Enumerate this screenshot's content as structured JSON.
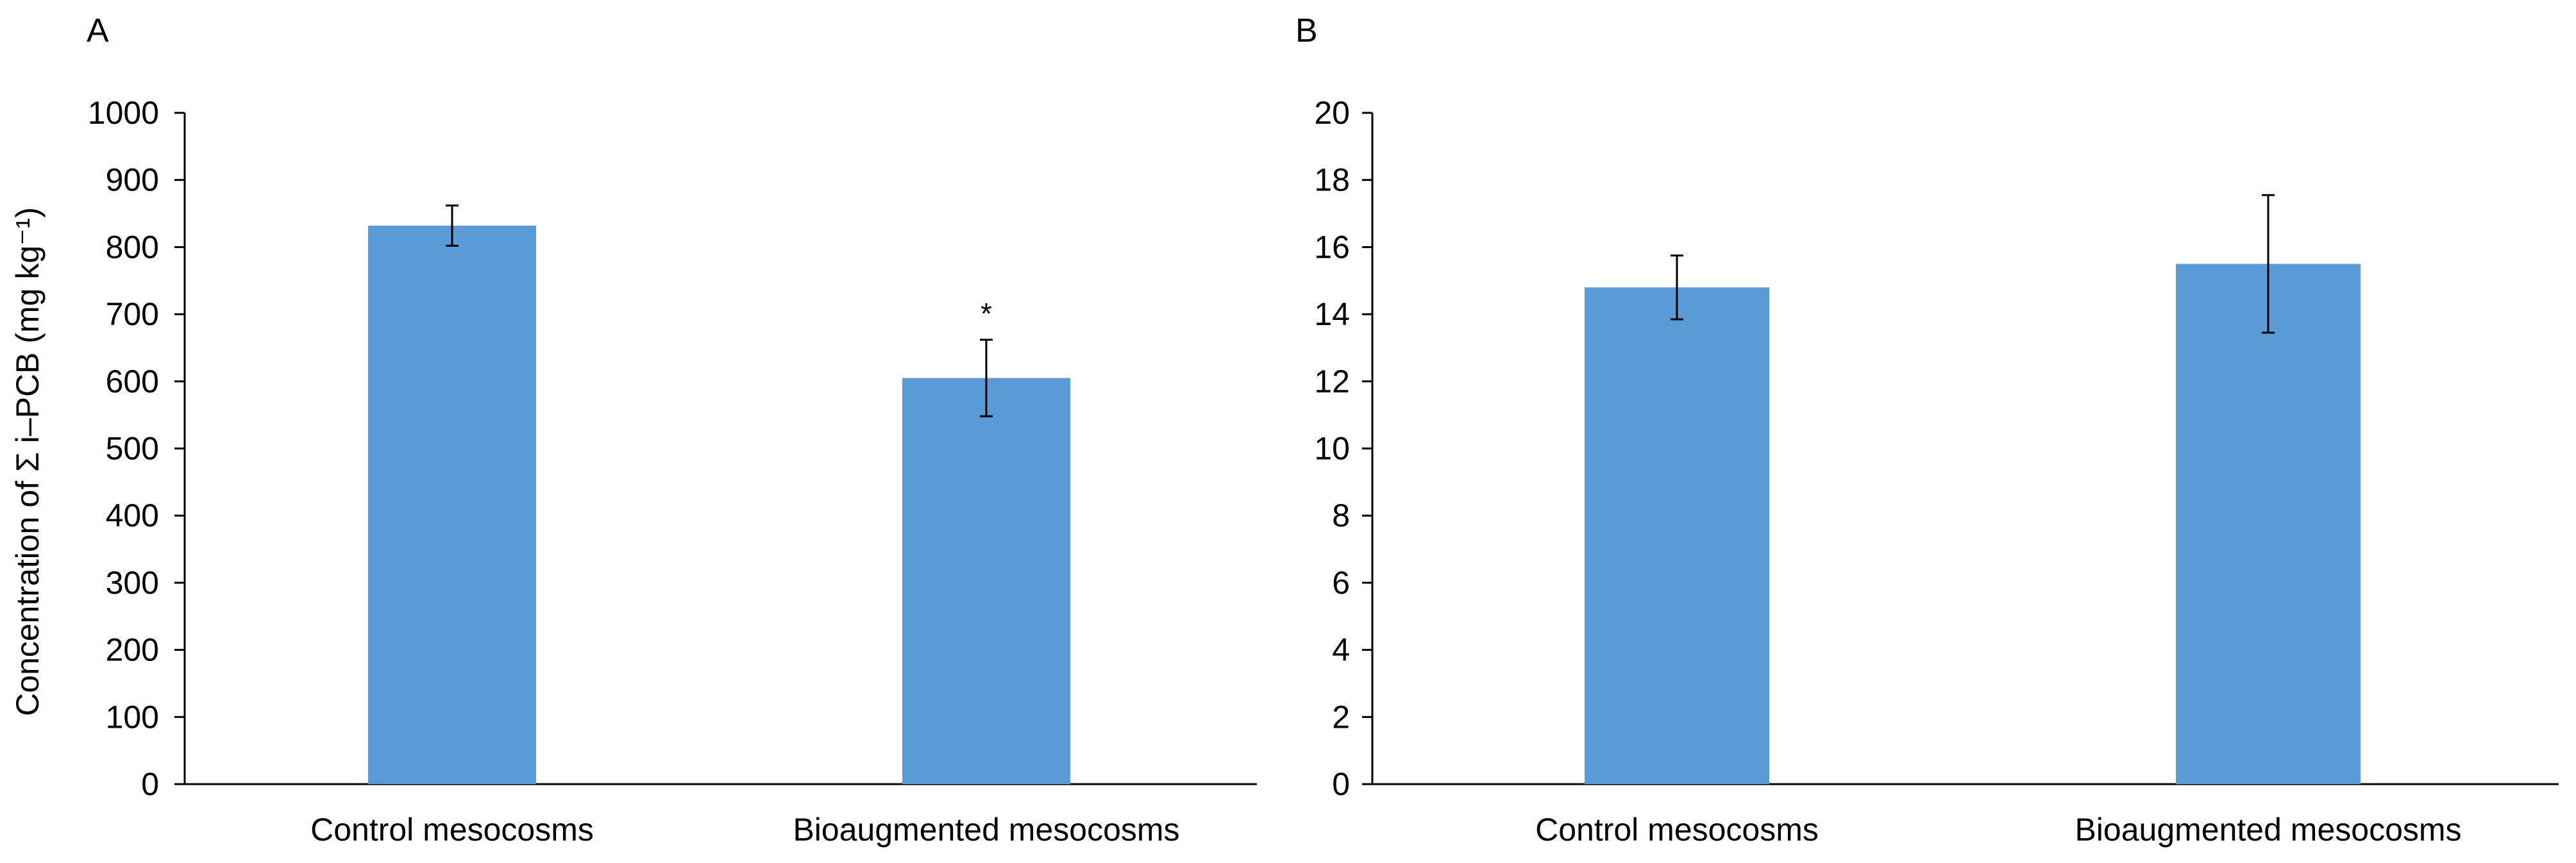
{
  "figure": {
    "bar_color": "#5b9bd5",
    "axis_color": "#000000"
  },
  "chart_data": [
    {
      "type": "bar",
      "panel_label": "A",
      "title": "",
      "xlabel": "",
      "ylabel": "Concentration of Σ i–PCB (mg kg⁻¹)",
      "categories": [
        "Control mesocosms",
        "Bioaugmented mesocosms"
      ],
      "values": [
        832,
        605
      ],
      "errors": [
        30,
        57
      ],
      "annotations": [
        "",
        "*"
      ],
      "ylim": [
        0,
        1000
      ],
      "yticks": [
        0,
        100,
        200,
        300,
        400,
        500,
        600,
        700,
        800,
        900,
        1000
      ],
      "grid": false,
      "legend": "none"
    },
    {
      "type": "bar",
      "panel_label": "B",
      "title": "",
      "xlabel": "",
      "ylabel": "",
      "categories": [
        "Control mesocosms",
        "Bioaugmented mesocosms"
      ],
      "values": [
        14.8,
        15.5
      ],
      "errors": [
        0.95,
        2.05
      ],
      "annotations": [
        "",
        ""
      ],
      "ylim": [
        0,
        20
      ],
      "yticks": [
        0,
        2,
        4,
        6,
        8,
        10,
        12,
        14,
        16,
        18,
        20
      ],
      "grid": false,
      "legend": "none"
    }
  ]
}
